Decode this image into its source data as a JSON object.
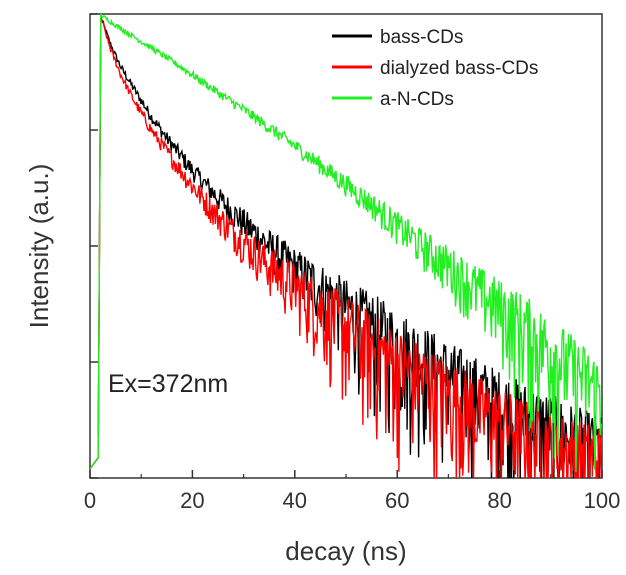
{
  "chart_data": {
    "type": "line",
    "title": "",
    "xlabel": "decay (ns)",
    "ylabel": "Intensity (a.u.)",
    "xlim": [
      0,
      100
    ],
    "x_ticks": [
      0,
      20,
      40,
      60,
      80,
      100
    ],
    "y_scale": "log",
    "ylim": [
      0.0001,
      1
    ],
    "y_tick_labels_shown": false,
    "grid": false,
    "legend_position": "top-right",
    "annotation": "Ex=372nm",
    "series": [
      {
        "name": "bass-CDs",
        "color": "#000000",
        "x": [
          2.1,
          4,
          6,
          8,
          10,
          12,
          15,
          20,
          25,
          30,
          35,
          40,
          45,
          50,
          55,
          60,
          65,
          70,
          75,
          80,
          85,
          90,
          95,
          100
        ],
        "y": [
          0.95,
          0.55,
          0.35,
          0.25,
          0.18,
          0.13,
          0.085,
          0.045,
          0.026,
          0.016,
          0.01,
          0.0065,
          0.0045,
          0.003,
          0.0021,
          0.0015,
          0.0011,
          0.0008,
          0.0006,
          0.00045,
          0.00035,
          0.00028,
          0.00022,
          0.00018
        ]
      },
      {
        "name": "dialyzed bass-CDs",
        "color": "#ff0000",
        "x": [
          2.1,
          4,
          6,
          8,
          10,
          12,
          15,
          20,
          25,
          30,
          35,
          40,
          45,
          50,
          55,
          60,
          65,
          70,
          75,
          80,
          85,
          90,
          95,
          100
        ],
        "y": [
          0.95,
          0.5,
          0.3,
          0.2,
          0.14,
          0.1,
          0.065,
          0.033,
          0.018,
          0.011,
          0.0068,
          0.0045,
          0.003,
          0.002,
          0.0014,
          0.001,
          0.00075,
          0.00055,
          0.00042,
          0.00032,
          0.00025,
          0.0002,
          0.00017,
          0.00015
        ]
      },
      {
        "name": "a-N-CDs",
        "color": "#22ee22",
        "x": [
          2.1,
          5,
          10,
          15,
          20,
          25,
          30,
          35,
          40,
          45,
          50,
          55,
          60,
          65,
          70,
          75,
          80,
          85,
          90,
          95,
          100
        ],
        "y": [
          0.98,
          0.8,
          0.58,
          0.42,
          0.3,
          0.21,
          0.15,
          0.105,
          0.073,
          0.05,
          0.034,
          0.023,
          0.015,
          0.01,
          0.0068,
          0.0045,
          0.003,
          0.002,
          0.0013,
          0.00085,
          0.00055
        ]
      }
    ]
  }
}
